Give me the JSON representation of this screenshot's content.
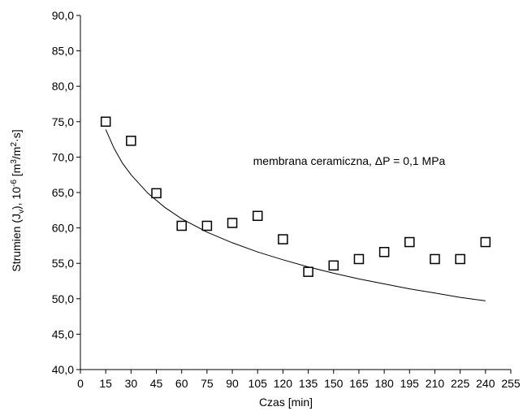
{
  "chart_data": {
    "type": "scatter",
    "xlabel": "Czas [min]",
    "ylabel_parts": {
      "main": "Strumien (J",
      "sub": "v",
      "mid": "), 10",
      "sup1": "-6",
      "unit_a": " [m",
      "sup2": "3",
      "unit_b": "/m",
      "sup3": "2",
      "unit_c": "·s]"
    },
    "annotation": "membrana ceramiczna, ΔP = 0,1 MPa",
    "xlim": [
      0,
      255
    ],
    "ylim": [
      40,
      90
    ],
    "x_ticks": [
      "0",
      "15",
      "30",
      "45",
      "60",
      "75",
      "90",
      "105",
      "120",
      "135",
      "150",
      "165",
      "180",
      "195",
      "210",
      "225",
      "240",
      "255"
    ],
    "y_ticks": [
      "40,0",
      "45,0",
      "50,0",
      "55,0",
      "60,0",
      "65,0",
      "70,0",
      "75,0",
      "80,0",
      "85,0",
      "90,0"
    ],
    "grid": false,
    "series": [
      {
        "marker": "open-square",
        "color": "#000000",
        "x": [
          15,
          30,
          45,
          60,
          75,
          90,
          105,
          120,
          135,
          150,
          165,
          180,
          195,
          210,
          225,
          240
        ],
        "y": [
          75.0,
          72.3,
          64.9,
          60.3,
          60.3,
          60.7,
          61.7,
          58.4,
          53.8,
          54.7,
          55.6,
          56.6,
          58.0,
          55.6,
          55.6,
          58.0
        ]
      }
    ],
    "trendline": {
      "type": "logarithmic",
      "color": "#000000",
      "x": [
        15,
        20,
        25,
        30,
        40,
        50,
        60,
        75,
        90,
        105,
        120,
        135,
        150,
        165,
        180,
        195,
        210,
        225,
        240
      ],
      "y": [
        73.9,
        71.2,
        69.1,
        67.5,
        64.9,
        62.9,
        61.3,
        59.4,
        57.9,
        56.6,
        55.5,
        54.5,
        53.6,
        52.8,
        52.1,
        51.4,
        50.8,
        50.2,
        49.7
      ]
    }
  }
}
